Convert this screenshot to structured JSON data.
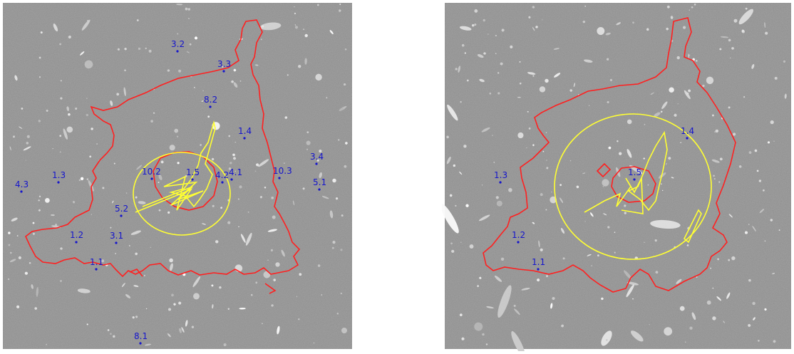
{
  "colors": {
    "sky": "#8e8e8e",
    "critical_curve": "#ff2020",
    "caustic": "#ffff33",
    "image_marker": "#1515cc"
  },
  "panels": [
    {
      "id": "left",
      "image_labels": [
        "3.2",
        "3.3",
        "8.2",
        "1.4",
        "3.4",
        "10.3",
        "5.1",
        "10.2",
        "1.5",
        "4.2",
        "4.1",
        "1.3",
        "4.3",
        "5.2",
        "1.2",
        "3.1",
        "1.1",
        "8.1"
      ]
    },
    {
      "id": "right",
      "image_labels": [
        "1.4",
        "1.3",
        "1.5",
        "1.2",
        "1.1"
      ]
    }
  ]
}
